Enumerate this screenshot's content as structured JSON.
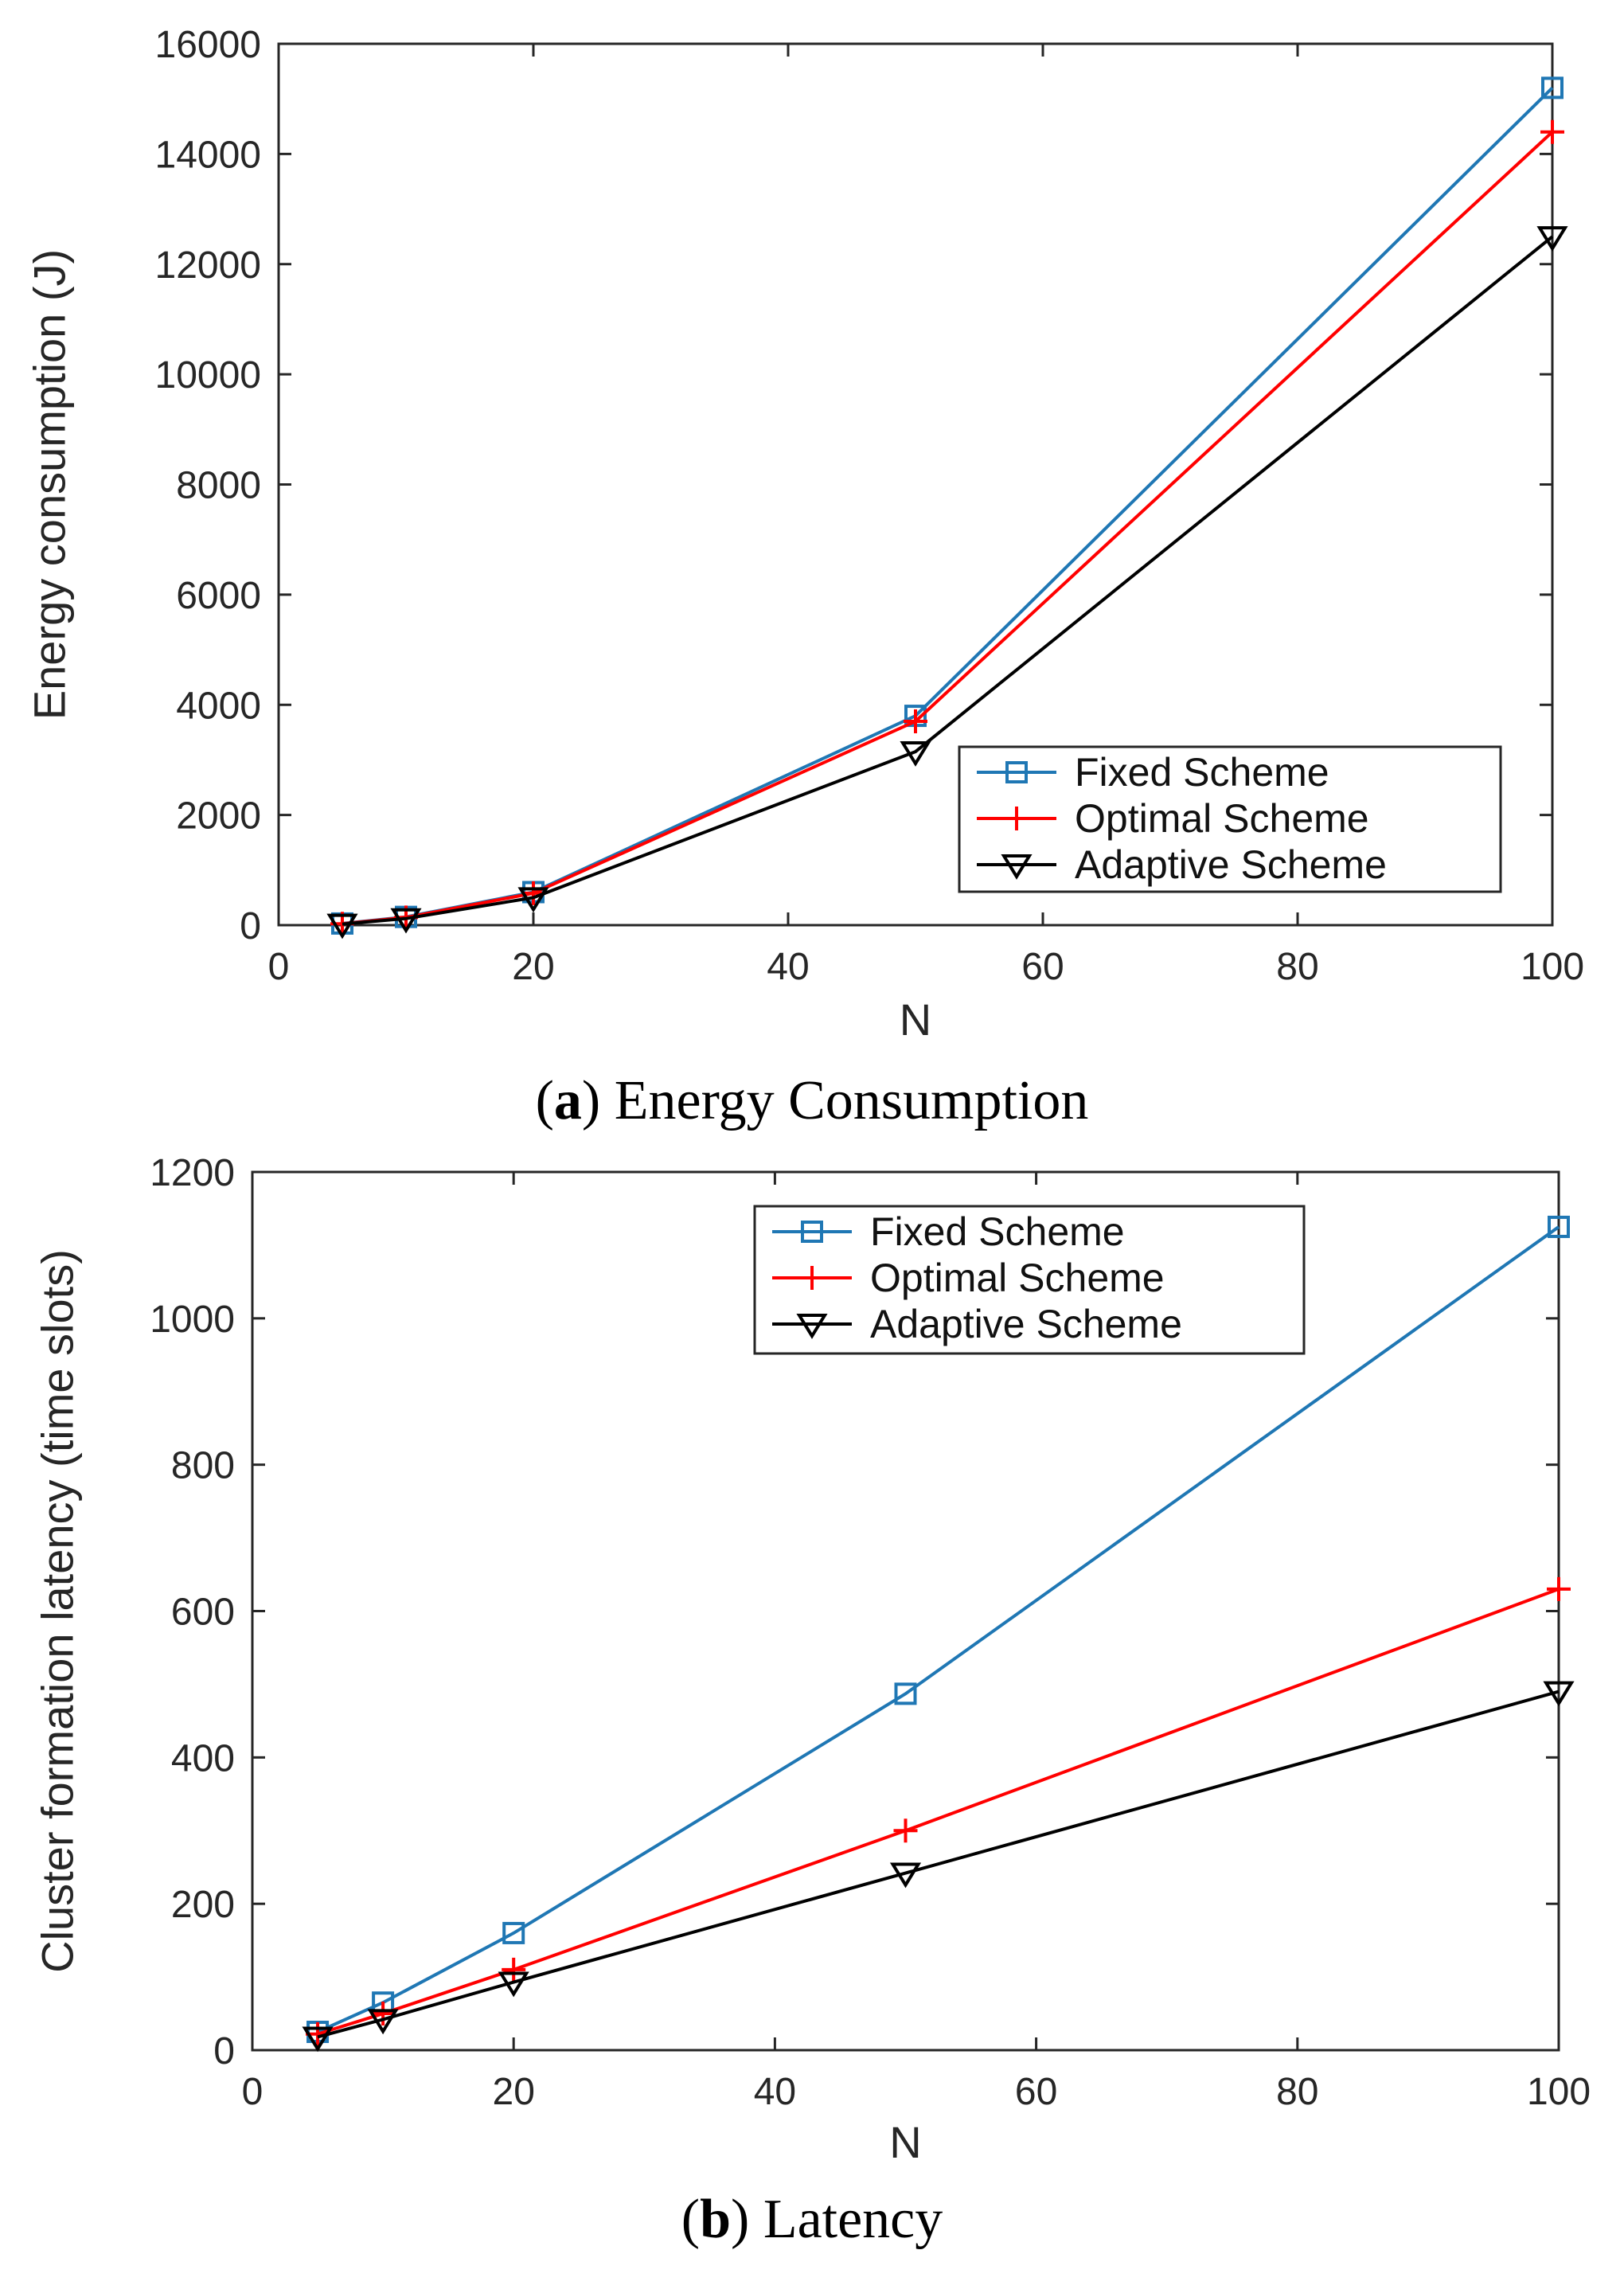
{
  "chart_data": [
    {
      "type": "line",
      "caption_letter": "a",
      "caption_open": "(",
      "caption_close": ")",
      "caption_text": " Energy Consumption",
      "xlabel": "N",
      "ylabel": "Energy consumption (J)",
      "xlim": [
        0,
        100
      ],
      "ylim": [
        0,
        16000
      ],
      "xticks": [
        0,
        20,
        40,
        60,
        80,
        100
      ],
      "yticks": [
        0,
        2000,
        4000,
        6000,
        8000,
        10000,
        12000,
        14000,
        16000
      ],
      "x": [
        5,
        10,
        20,
        50,
        100
      ],
      "legend_position": "bottom-right",
      "series": [
        {
          "name": "Fixed Scheme",
          "color": "#1f77b4",
          "marker": "square",
          "values": [
            30,
            150,
            600,
            3800,
            15200
          ]
        },
        {
          "name": "Optimal Scheme",
          "color": "#ff0000",
          "marker": "plus",
          "values": [
            25,
            140,
            580,
            3700,
            14400
          ]
        },
        {
          "name": "Adaptive Scheme",
          "color": "#000000",
          "marker": "triangle-down",
          "values": [
            20,
            120,
            500,
            3150,
            12500
          ]
        }
      ]
    },
    {
      "type": "line",
      "caption_letter": "b",
      "caption_open": "(",
      "caption_close": ")",
      "caption_text": " Latency",
      "xlabel": "N",
      "ylabel": "Cluster formation latency (time slots)",
      "xlim": [
        0,
        100
      ],
      "ylim": [
        0,
        1200
      ],
      "xticks": [
        0,
        20,
        40,
        60,
        80,
        100
      ],
      "yticks": [
        0,
        200,
        400,
        600,
        800,
        1000,
        1200
      ],
      "x": [
        5,
        10,
        20,
        50,
        100
      ],
      "legend_position": "top-right",
      "series": [
        {
          "name": "Fixed Scheme",
          "color": "#1f77b4",
          "marker": "square",
          "values": [
            25,
            65,
            160,
            487,
            1125
          ]
        },
        {
          "name": "Optimal Scheme",
          "color": "#ff0000",
          "marker": "plus",
          "values": [
            22,
            50,
            110,
            300,
            630
          ]
        },
        {
          "name": "Adaptive Scheme",
          "color": "#000000",
          "marker": "triangle-down",
          "values": [
            18,
            42,
            93,
            242,
            490
          ]
        }
      ]
    }
  ]
}
